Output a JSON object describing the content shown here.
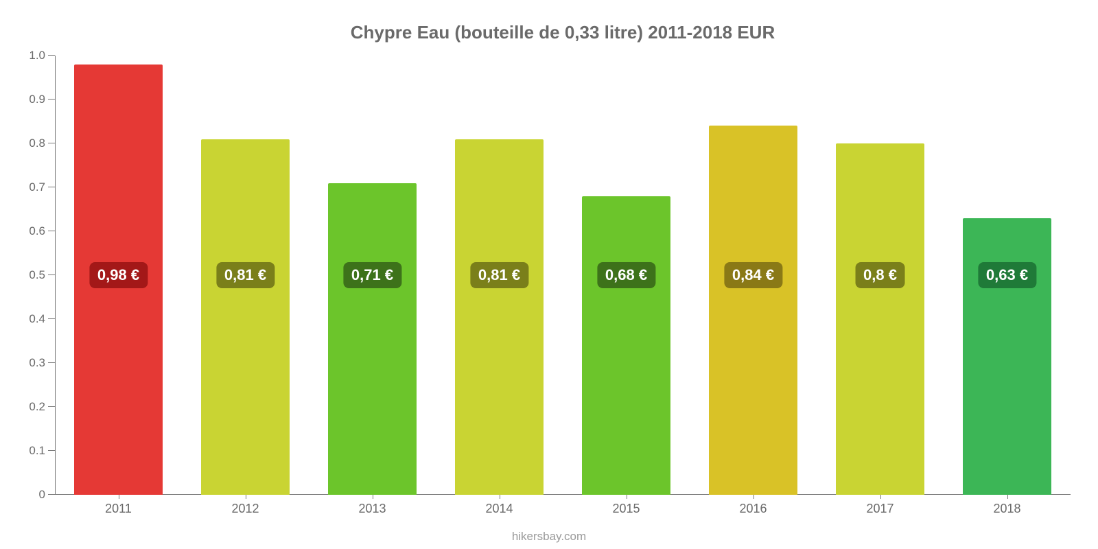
{
  "chart": {
    "type": "bar",
    "title": "Chypre Eau (bouteille de 0,33 litre) 2011-2018 EUR",
    "title_fontsize": 26,
    "title_color": "#6a6a6a",
    "background_color": "#ffffff",
    "axis_color": "#777777",
    "label_color": "#6a6a6a",
    "label_fontsize": 17,
    "xlabel_fontsize": 18,
    "ylim": [
      0,
      1.0
    ],
    "yticks": [
      "0",
      "0.1",
      "0.2",
      "0.3",
      "0.4",
      "0.5",
      "0.6",
      "0.7",
      "0.8",
      "0.9",
      "1.0"
    ],
    "ytick_positions": [
      0,
      0.1,
      0.2,
      0.3,
      0.4,
      0.5,
      0.6,
      0.7,
      0.8,
      0.9,
      1.0
    ],
    "bar_width": 0.7,
    "value_badge_fontsize": 22,
    "value_badge_text_color": "#ffffff",
    "value_badge_radius": 8,
    "badge_center_value": 0.5,
    "categories": [
      "2011",
      "2012",
      "2013",
      "2014",
      "2015",
      "2016",
      "2017",
      "2018"
    ],
    "values": [
      0.98,
      0.81,
      0.71,
      0.81,
      0.68,
      0.84,
      0.8,
      0.63
    ],
    "value_labels": [
      "0,98 €",
      "0,81 €",
      "0,71 €",
      "0,81 €",
      "0,68 €",
      "0,84 €",
      "0,8 €",
      "0,63 €"
    ],
    "bar_colors": [
      "#e53935",
      "#c9d433",
      "#6cc52b",
      "#c9d433",
      "#6cc52b",
      "#d9c227",
      "#c9d433",
      "#3cb656"
    ],
    "badge_colors": [
      "#a31818",
      "#7a7f1a",
      "#3d721a",
      "#7a7f1a",
      "#3d721a",
      "#8a7916",
      "#7a7f1a",
      "#1f7a38"
    ],
    "source": "hikersbay.com"
  }
}
